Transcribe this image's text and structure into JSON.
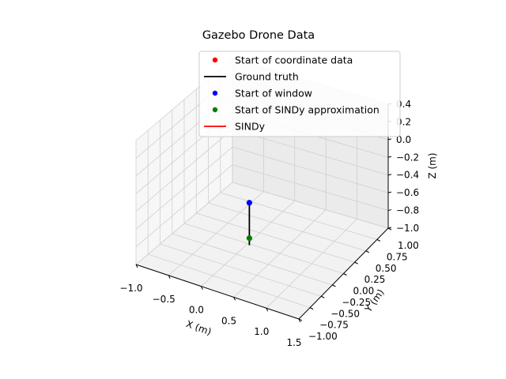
{
  "chart_data": {
    "type": "line3d",
    "title": "Gazebo Drone Data",
    "xlabel": "X (m)",
    "ylabel": "Y (m)",
    "zlabel": "Z (m)",
    "xlim": [
      -1.0,
      1.5
    ],
    "ylim": [
      -1.0,
      1.0
    ],
    "zlim": [
      -1.0,
      0.4
    ],
    "xticks": [
      "−1.0",
      "−0.5",
      "0.0",
      "0.5",
      "1.0",
      "1.5"
    ],
    "yticks": [
      "−1.00",
      "−0.75",
      "−0.50",
      "−0.25",
      "0.00",
      "0.25",
      "0.50",
      "0.75",
      "1.00"
    ],
    "zticks": [
      "−1.0",
      "−0.8",
      "−0.6",
      "−0.4",
      "−0.2",
      "0.0",
      "0.2",
      "0.4"
    ],
    "grid": true,
    "legend_position": "top-right",
    "legend": [
      {
        "label": "Start of coordinate data",
        "marker": "dot",
        "color": "#ff0000"
      },
      {
        "label": "Ground truth",
        "marker": "line",
        "color": "#000000"
      },
      {
        "label": "Start of window",
        "marker": "dot",
        "color": "#0000ff"
      },
      {
        "label": "Start of SINDy approximation",
        "marker": "dot",
        "color": "#008000"
      },
      {
        "label": "SINDy",
        "marker": "line",
        "color": "#ff0000"
      }
    ],
    "series": [
      {
        "name": "Ground truth",
        "type": "line",
        "color": "#000000",
        "points": [
          [
            0.0,
            0.0,
            -0.52
          ],
          [
            0.0,
            0.0,
            -1.0
          ]
        ]
      },
      {
        "name": "Start of window",
        "type": "point",
        "color": "#0000ff",
        "points": [
          [
            0.0,
            0.0,
            -0.52
          ]
        ]
      },
      {
        "name": "Start of SINDy approximation",
        "type": "point",
        "color": "#008000",
        "points": [
          [
            0.0,
            0.0,
            -0.92
          ]
        ]
      }
    ]
  }
}
